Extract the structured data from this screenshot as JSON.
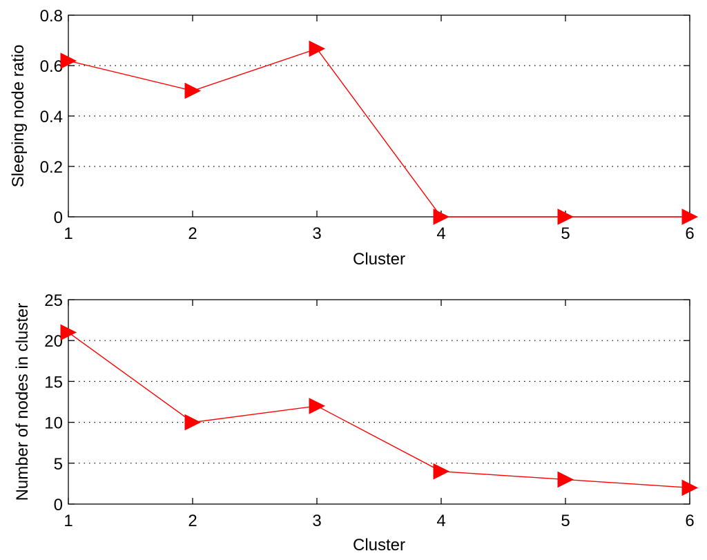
{
  "chart_data": [
    {
      "type": "line",
      "title": "",
      "xlabel": "Cluster",
      "ylabel": "Sleeping node ratio",
      "xlim": [
        1,
        6
      ],
      "ylim": [
        0,
        0.8
      ],
      "x_ticks": [
        1,
        2,
        3,
        4,
        5,
        6
      ],
      "y_ticks": [
        0,
        0.2,
        0.4,
        0.6,
        0.8
      ],
      "y_tick_labels": [
        "0",
        "0.2",
        "0.4",
        "0.6",
        "0.8"
      ],
      "grid": "horizontal dotted",
      "series": [
        {
          "x": [
            1,
            2,
            3,
            4,
            5,
            6
          ],
          "values": [
            0.619,
            0.5,
            0.667,
            0,
            0,
            0
          ],
          "color": "#ff0000",
          "marker": "triangle-right"
        }
      ]
    },
    {
      "type": "line",
      "title": "",
      "xlabel": "Cluster",
      "ylabel": "Number of nodes in cluster",
      "xlim": [
        1,
        6
      ],
      "ylim": [
        0,
        25
      ],
      "x_ticks": [
        1,
        2,
        3,
        4,
        5,
        6
      ],
      "y_ticks": [
        0,
        5,
        10,
        15,
        20,
        25
      ],
      "y_tick_labels": [
        "0",
        "5",
        "10",
        "15",
        "20",
        "25"
      ],
      "grid": "horizontal dotted",
      "series": [
        {
          "x": [
            1,
            2,
            3,
            4,
            5,
            6
          ],
          "values": [
            21,
            10,
            12,
            4,
            3,
            2
          ],
          "color": "#ff0000",
          "marker": "triangle-right"
        }
      ]
    }
  ]
}
